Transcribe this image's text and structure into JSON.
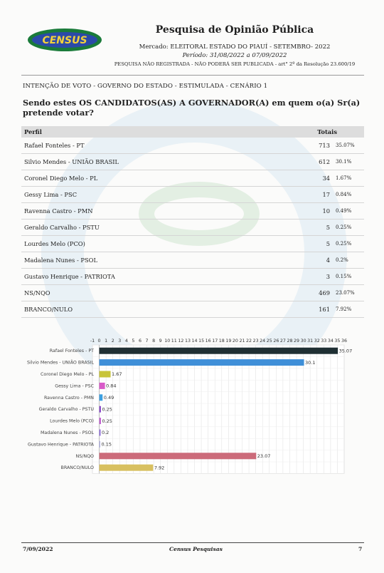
{
  "header": {
    "logo_text": "CENSUS",
    "title": "Pesquisa de Opinião Pública",
    "mercado": "Mercado: ELEITORAL ESTADO DO PIAUÍ - SETEMBRO- 2022",
    "periodo": "Período: 31/08/2022 a 07/09/2022",
    "registro": "PESQUISA NÃO REGISTRADA - NÃO PODERÁ SER PUBLICADA - art° 2º da Resolução 23.600/19"
  },
  "section": "INTENÇÃO DE VOTO - GOVERNO DO ESTADO - ESTIMULADA - CENÁRIO 1",
  "question": "Sendo estes OS CANDIDATOS(AS) A GOVERNADOR(A) em quem o(a) Sr(a) pretende votar?",
  "table": {
    "col_perfil": "Perfil",
    "col_totais": "Totais",
    "rows": [
      {
        "name": "Rafael Fonteles - PT",
        "n": "713",
        "pct": "35.07%"
      },
      {
        "name": "Silvio Mendes - UNIÃO BRASIL",
        "n": "612",
        "pct": "30.1%"
      },
      {
        "name": "Coronel Diego Melo - PL",
        "n": "34",
        "pct": "1.67%"
      },
      {
        "name": "Gessy Lima - PSC",
        "n": "17",
        "pct": "0.84%"
      },
      {
        "name": "Ravenna Castro - PMN",
        "n": "10",
        "pct": "0.49%"
      },
      {
        "name": "Geraldo Carvalho - PSTU",
        "n": "5",
        "pct": "0.25%"
      },
      {
        "name": "Lourdes Melo (PCO)",
        "n": "5",
        "pct": "0.25%"
      },
      {
        "name": "Madalena Nunes - PSOL",
        "n": "4",
        "pct": "0.2%"
      },
      {
        "name": "Gustavo Henrique - PATRIOTA",
        "n": "3",
        "pct": "0.15%"
      },
      {
        "name": "NS/NQO",
        "n": "469",
        "pct": "23.07%"
      },
      {
        "name": "BRANCO/NULO",
        "n": "161",
        "pct": "7.92%"
      }
    ]
  },
  "chart_data": {
    "type": "bar",
    "orientation": "horizontal",
    "categories": [
      "Rafael Fonteles - PT",
      "Silvio Mendes - UNIÃO BRASIL",
      "Coronel Diego Melo - PL",
      "Gessy Lima - PSC",
      "Ravenna Castro - PMN",
      "Geraldo Carvalho - PSTU",
      "Lourdes Melo (PCO)",
      "Madalena Nunes - PSOL",
      "Gustavo Henrique - PATRIOTA",
      "NS/NQO",
      "BRANCO/NULO"
    ],
    "values": [
      35.07,
      30.1,
      1.67,
      0.84,
      0.49,
      0.25,
      0.25,
      0.2,
      0.15,
      23.07,
      7.92
    ],
    "value_labels": [
      "35.07",
      "30.1",
      "1.67",
      "0.84",
      "0.49",
      "0.25",
      "0.25",
      "0.2",
      "0.15",
      "23.07",
      "7.92"
    ],
    "colors": [
      "#1f2f33",
      "#3f8fd8",
      "#c8c43a",
      "#d85ac8",
      "#3b9fe0",
      "#8a4cc8",
      "#c060d0",
      "#8f6fd8",
      "#b0b0e0",
      "#cc6b7a",
      "#d8c060"
    ],
    "xlim": [
      -1,
      36
    ],
    "xticks": [
      "-1",
      "0",
      "1",
      "2",
      "3",
      "4",
      "5",
      "6",
      "7",
      "8",
      "9",
      "10",
      "11",
      "12",
      "13",
      "14",
      "15",
      "16",
      "17",
      "18",
      "19",
      "20",
      "21",
      "22",
      "23",
      "24",
      "25",
      "26",
      "27",
      "28",
      "29",
      "30",
      "31",
      "32",
      "33",
      "34",
      "35",
      "36"
    ],
    "grid": true,
    "title": "",
    "xlabel": "",
    "ylabel": ""
  },
  "footer": {
    "date": "7/09/2022",
    "name": "Census Pesquisas",
    "page": "7"
  }
}
